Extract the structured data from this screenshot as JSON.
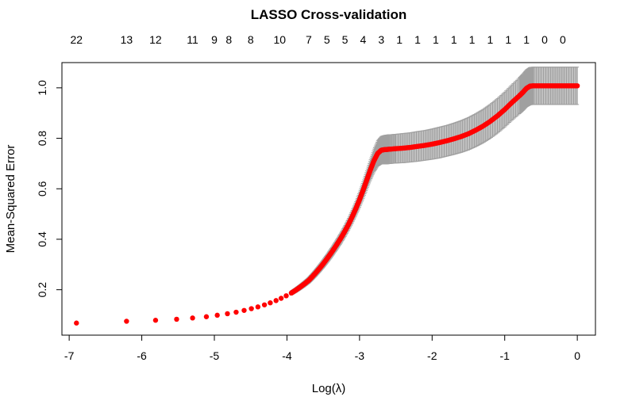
{
  "chart_data": {
    "type": "scatter",
    "title": "LASSO Cross-validation",
    "xlabel": "Log(λ)",
    "ylabel": "Mean-Squared Error",
    "xlim": [
      -7.1,
      0.25
    ],
    "ylim": [
      0.02,
      1.1
    ],
    "x_ticks": [
      -7,
      -6,
      -5,
      -4,
      -3,
      -2,
      -1,
      0
    ],
    "y_ticks": [
      0.2,
      0.4,
      0.6,
      0.8,
      1.0
    ],
    "x_tick_labels": [
      "-7",
      "-6",
      "-5",
      "-4",
      "-3",
      "-2",
      "-1",
      "0"
    ],
    "y_tick_labels": [
      "0.2",
      "0.4",
      "0.6",
      "0.8",
      "1.0"
    ],
    "top_axis": {
      "x": [
        -6.9,
        -6.21,
        -5.81,
        -5.3,
        -5.0,
        -4.8,
        -4.5,
        -4.1,
        -3.7,
        -3.45,
        -3.2,
        -2.95,
        -2.7,
        -2.45,
        -2.2,
        -1.95,
        -1.7,
        -1.45,
        -1.2,
        -0.95,
        -0.7,
        -0.45,
        -0.2
      ],
      "labels": [
        "22",
        "13",
        "12",
        "11",
        "9",
        "8",
        "8",
        "10",
        "7",
        "5",
        "5",
        "4",
        "3",
        "1",
        "1",
        "1",
        "1",
        "1",
        "1",
        "1",
        "1",
        "0",
        "0"
      ]
    },
    "series": [
      {
        "color": "#ff0000",
        "error_color": "#a0a0a0",
        "x": [
          -6.9,
          -6.21,
          -5.81,
          -5.52,
          -5.3,
          -5.11,
          -4.96,
          -4.82,
          -4.7,
          -4.59,
          -4.49,
          -4.4,
          -4.31,
          -4.23,
          -4.15,
          -4.08,
          -4.01,
          -3.94,
          -3.88,
          -3.82,
          -3.76,
          -3.7,
          -3.65,
          -3.6,
          -3.55,
          -3.5,
          -3.45,
          -3.4,
          -3.35,
          -3.3,
          -3.25,
          -3.2,
          -3.15,
          -3.1,
          -3.05,
          -3.0,
          -2.95,
          -2.9,
          -2.85,
          -2.8,
          -2.75,
          -2.7,
          -2.66,
          -2.62,
          -2.58,
          -2.5,
          -2.4,
          -2.3,
          -2.2,
          -2.1,
          -2.0,
          -1.9,
          -1.8,
          -1.7,
          -1.6,
          -1.5,
          -1.4,
          -1.3,
          -1.2,
          -1.1,
          -1.0,
          -0.9,
          -0.8,
          -0.75,
          -0.7,
          -0.65,
          -0.6,
          -0.5,
          -0.4,
          -0.3,
          -0.2,
          -0.1,
          0.0
        ],
        "y": [
          0.068,
          0.075,
          0.079,
          0.083,
          0.088,
          0.093,
          0.099,
          0.105,
          0.111,
          0.118,
          0.125,
          0.132,
          0.14,
          0.148,
          0.157,
          0.166,
          0.176,
          0.187,
          0.198,
          0.21,
          0.223,
          0.237,
          0.252,
          0.268,
          0.285,
          0.303,
          0.322,
          0.342,
          0.363,
          0.385,
          0.408,
          0.433,
          0.46,
          0.49,
          0.522,
          0.557,
          0.595,
          0.635,
          0.675,
          0.712,
          0.74,
          0.753,
          0.755,
          0.756,
          0.757,
          0.759,
          0.761,
          0.764,
          0.768,
          0.772,
          0.777,
          0.783,
          0.79,
          0.798,
          0.807,
          0.818,
          0.832,
          0.848,
          0.867,
          0.889,
          0.914,
          0.942,
          0.968,
          0.982,
          0.998,
          1.007,
          1.008,
          1.008,
          1.008,
          1.008,
          1.008,
          1.008,
          1.008
        ],
        "err": [
          0.0,
          0.0,
          0.0,
          0.0,
          0.0,
          0.0,
          0.0,
          0.0,
          0.0,
          0.0,
          0.0,
          0.002,
          0.003,
          0.004,
          0.005,
          0.006,
          0.007,
          0.008,
          0.009,
          0.01,
          0.011,
          0.012,
          0.013,
          0.014,
          0.015,
          0.016,
          0.017,
          0.018,
          0.019,
          0.02,
          0.021,
          0.022,
          0.023,
          0.025,
          0.027,
          0.03,
          0.033,
          0.036,
          0.04,
          0.045,
          0.05,
          0.054,
          0.056,
          0.057,
          0.057,
          0.057,
          0.058,
          0.058,
          0.059,
          0.059,
          0.06,
          0.061,
          0.061,
          0.062,
          0.063,
          0.064,
          0.065,
          0.066,
          0.067,
          0.068,
          0.069,
          0.07,
          0.071,
          0.072,
          0.073,
          0.074,
          0.074,
          0.074,
          0.074,
          0.074,
          0.074,
          0.074,
          0.074
        ]
      }
    ],
    "grid": false,
    "legend": "none"
  }
}
